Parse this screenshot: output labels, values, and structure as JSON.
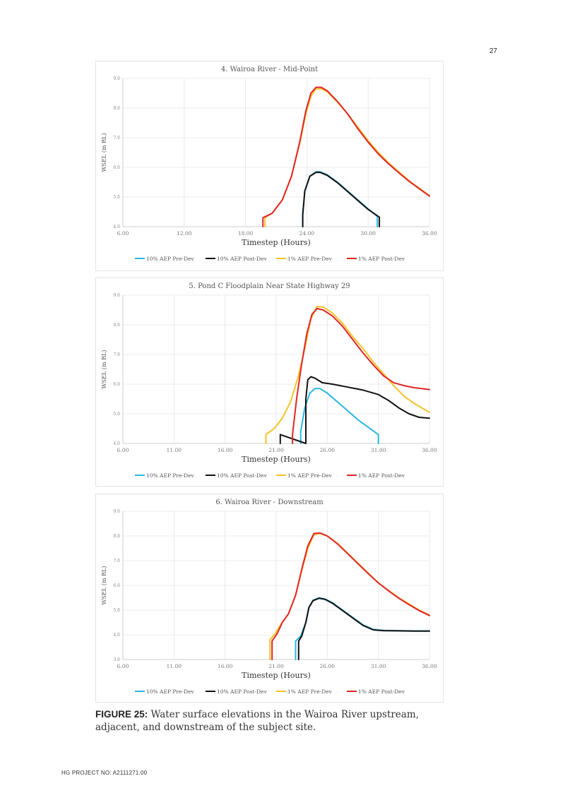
{
  "page": {
    "number": "27",
    "footer": "HG PROJECT NO: A2111271.00",
    "caption_label": "FIGURE 25:",
    "caption_text": " Water surface elevations in the Wairoa River upstream, adjacent, and downstream of the subject site."
  },
  "colors": {
    "10% AEP Pre-Dev": "#29b6e3",
    "10% AEP Post-Dev": "#111111",
    "1% AEP Pre-Dev": "#f5c227",
    "1% AEP Post-Dev": "#e02525"
  },
  "chart_data": [
    {
      "type": "line",
      "title": "4. Wairoa River - Mid-Point",
      "xlabel": "Timestep (Hours)",
      "ylabel": "WSEL (m RL)",
      "xlim": [
        6,
        36
      ],
      "ylim": [
        4,
        9
      ],
      "xticks": [
        6,
        12,
        18,
        24,
        30,
        36
      ],
      "xtick_labels": [
        "6.00",
        "12.00",
        "18.00",
        "24.00",
        "30.00",
        "36.00"
      ],
      "yticks": [
        4,
        5,
        6,
        7,
        8,
        9
      ],
      "ytick_labels": [
        "4.0",
        "5.0",
        "6.0",
        "7.0",
        "8.0",
        "9.0"
      ],
      "grid": true,
      "legend": "bottom",
      "series": [
        {
          "name": "10% AEP Pre-Dev",
          "x": [
            23.6,
            23.6,
            23.8,
            24.3,
            24.9,
            25.3,
            26,
            27,
            28,
            29,
            30,
            30.9,
            30.9
          ],
          "y": [
            4,
            4.4,
            5.2,
            5.7,
            5.85,
            5.85,
            5.75,
            5.5,
            5.2,
            4.9,
            4.6,
            4.35,
            4
          ]
        },
        {
          "name": "10% AEP Post-Dev",
          "x": [
            23.6,
            23.6,
            23.8,
            24.3,
            24.9,
            25.3,
            26,
            27,
            28,
            29,
            30,
            31.1,
            31.1
          ],
          "y": [
            4,
            4.4,
            5.2,
            5.7,
            5.83,
            5.83,
            5.73,
            5.48,
            5.18,
            4.88,
            4.58,
            4.32,
            4
          ]
        },
        {
          "name": "1% AEP Pre-Dev",
          "x": [
            19.9,
            19.9,
            20.6,
            21.6,
            22.5,
            23.3,
            23.9,
            24.4,
            24.9,
            25.4,
            26,
            27,
            28,
            29,
            30,
            31,
            32,
            33,
            34,
            35,
            36
          ],
          "y": [
            4,
            4.3,
            4.45,
            4.9,
            5.7,
            6.8,
            7.8,
            8.4,
            8.65,
            8.65,
            8.55,
            8.2,
            7.8,
            7.35,
            6.9,
            6.5,
            6.15,
            5.85,
            5.55,
            5.3,
            5.05
          ]
        },
        {
          "name": "1% AEP Post-Dev",
          "x": [
            19.7,
            19.7,
            20.6,
            21.6,
            22.5,
            23.3,
            23.9,
            24.4,
            24.9,
            25.4,
            26,
            27,
            28,
            29,
            30,
            31,
            32,
            33,
            34,
            35,
            36
          ],
          "y": [
            4,
            4.3,
            4.45,
            4.9,
            5.7,
            6.85,
            7.9,
            8.5,
            8.7,
            8.7,
            8.58,
            8.22,
            7.8,
            7.3,
            6.85,
            6.45,
            6.12,
            5.82,
            5.53,
            5.28,
            5.03
          ]
        }
      ]
    },
    {
      "type": "line",
      "title": "5. Pond C Floodplain Near State Highway 29",
      "xlabel": "Timestep (Hours)",
      "ylabel": "WSEL (m RL)",
      "xlim": [
        6,
        36
      ],
      "ylim": [
        4,
        9
      ],
      "xticks": [
        6,
        11,
        16,
        21,
        26,
        31,
        36
      ],
      "xtick_labels": [
        "6.00",
        "11.00",
        "16.00",
        "21.00",
        "26.00",
        "31.00",
        "36.00"
      ],
      "yticks": [
        4,
        5,
        6,
        7,
        8,
        9
      ],
      "ytick_labels": [
        "4.0",
        "5.0",
        "6.0",
        "7.0",
        "8.0",
        "9.0"
      ],
      "grid": true,
      "legend": "bottom",
      "series": [
        {
          "name": "10% AEP Pre-Dev",
          "x": [
            23.4,
            23.4,
            23.8,
            24.3,
            24.8,
            25.3,
            26,
            27,
            28,
            29,
            30,
            31,
            31
          ],
          "y": [
            4,
            4.4,
            5.2,
            5.7,
            5.85,
            5.85,
            5.7,
            5.4,
            5.1,
            4.8,
            4.55,
            4.3,
            4
          ]
        },
        {
          "name": "10% AEP Post-Dev",
          "x": [
            21.4,
            21.4,
            23.9,
            23.9,
            24.1,
            24.4,
            24.8,
            25.5,
            26.5,
            28,
            29.5,
            31,
            32,
            33,
            34,
            35,
            36
          ],
          "y": [
            4,
            4.3,
            4,
            5.5,
            6.15,
            6.25,
            6.2,
            6.05,
            6,
            5.9,
            5.8,
            5.65,
            5.45,
            5.2,
            5,
            4.88,
            4.85
          ]
        },
        {
          "name": "1% AEP Pre-Dev",
          "x": [
            20,
            20,
            20.8,
            21.6,
            22.4,
            23.2,
            23.8,
            24.4,
            25,
            25.6,
            26.5,
            27.5,
            28.5,
            29.5,
            30.5,
            31.5,
            32.5,
            33.5,
            34.5,
            35.5,
            36
          ],
          "y": [
            4,
            4.3,
            4.5,
            4.85,
            5.4,
            6.3,
            7.2,
            8.2,
            8.62,
            8.6,
            8.4,
            8.05,
            7.6,
            7.2,
            6.75,
            6.35,
            5.95,
            5.6,
            5.35,
            5.15,
            5.05
          ]
        },
        {
          "name": "1% AEP Post-Dev",
          "x": [
            22.6,
            22.6,
            23,
            23.5,
            24,
            24.5,
            25,
            25.6,
            26.5,
            27.5,
            28.5,
            29.5,
            30.5,
            31.5,
            32.5,
            33.5,
            34.5,
            35.5,
            36
          ],
          "y": [
            4,
            4.3,
            5.5,
            6.7,
            7.7,
            8.35,
            8.55,
            8.5,
            8.3,
            7.95,
            7.5,
            7.05,
            6.65,
            6.28,
            6.05,
            5.95,
            5.88,
            5.84,
            5.82
          ]
        }
      ]
    },
    {
      "type": "line",
      "title": "6. Wairoa River - Downstream",
      "xlabel": "Timestep (Hours)",
      "ylabel": "WSEL (m RL)",
      "xlim": [
        6,
        36
      ],
      "ylim": [
        3,
        9
      ],
      "xticks": [
        6,
        11,
        16,
        21,
        26,
        31,
        36
      ],
      "xtick_labels": [
        "6.00",
        "11.00",
        "16.00",
        "21.00",
        "26.00",
        "31.00",
        "36.00"
      ],
      "yticks": [
        3,
        4,
        5,
        6,
        7,
        8,
        9
      ],
      "ytick_labels": [
        "3.0",
        "4.0",
        "5.0",
        "6.0",
        "7.0",
        "8.0",
        "9.0"
      ],
      "grid": true,
      "legend": "bottom",
      "series": [
        {
          "name": "10% AEP Pre-Dev",
          "x": [
            22.9,
            22.9,
            23.4,
            23.9,
            24.2,
            24.6,
            25.2,
            25.8,
            26.5,
            27.5,
            28.5,
            29.5,
            30.5,
            31.5,
            33,
            34.5,
            36
          ],
          "y": [
            3,
            3.75,
            3.95,
            4.5,
            5.1,
            5.4,
            5.5,
            5.45,
            5.3,
            5.0,
            4.7,
            4.4,
            4.22,
            4.18,
            4.17,
            4.16,
            4.16
          ]
        },
        {
          "name": "10% AEP Post-Dev",
          "x": [
            23.2,
            23.2,
            23.5,
            23.9,
            24.2,
            24.6,
            25.2,
            25.8,
            26.5,
            27.5,
            28.5,
            29.5,
            30.5,
            31.5,
            33,
            34.5,
            36
          ],
          "y": [
            3,
            3.75,
            3.95,
            4.5,
            5.1,
            5.38,
            5.48,
            5.43,
            5.28,
            4.98,
            4.68,
            4.38,
            4.2,
            4.17,
            4.16,
            4.15,
            4.15
          ]
        },
        {
          "name": "1% AEP Pre-Dev",
          "x": [
            20.4,
            20.4,
            20.9,
            21.5,
            22.2,
            22.9,
            23.5,
            24.1,
            24.7,
            25.3,
            26,
            27,
            28,
            29,
            30,
            31,
            32,
            33,
            34,
            35,
            36
          ],
          "y": [
            3,
            3.8,
            4.05,
            4.45,
            4.85,
            5.6,
            6.6,
            7.5,
            8.05,
            8.1,
            8.0,
            7.7,
            7.3,
            6.9,
            6.5,
            6.1,
            5.8,
            5.5,
            5.25,
            5.0,
            4.8
          ]
        },
        {
          "name": "1% AEP Post-Dev",
          "x": [
            20.6,
            20.6,
            21.1,
            21.6,
            22.2,
            22.9,
            23.5,
            24.1,
            24.7,
            25.3,
            26,
            27,
            28,
            29,
            30,
            31,
            32,
            33,
            34,
            35,
            36
          ],
          "y": [
            3,
            3.75,
            4.05,
            4.5,
            4.85,
            5.6,
            6.65,
            7.6,
            8.1,
            8.12,
            8.0,
            7.68,
            7.28,
            6.88,
            6.48,
            6.1,
            5.78,
            5.48,
            5.22,
            4.98,
            4.78
          ]
        }
      ]
    }
  ]
}
